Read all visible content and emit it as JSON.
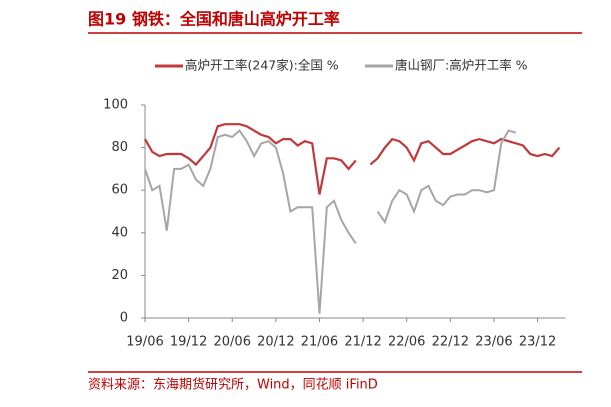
{
  "chart_data": {
    "type": "line",
    "title": "图19   钢铁：全国和唐山高炉开工率",
    "source": "资料来源：东海期货研究所，Wind，同花顺 iFinD",
    "categories": [
      "19/06",
      null,
      null,
      null,
      null,
      null,
      "19/12",
      null,
      null,
      null,
      null,
      null,
      "20/06",
      null,
      null,
      null,
      null,
      null,
      "20/12",
      null,
      null,
      null,
      null,
      null,
      "21/06",
      null,
      null,
      null,
      null,
      null,
      "21/12",
      null,
      null,
      null,
      null,
      null,
      "22/06",
      null,
      null,
      null,
      null,
      null,
      "22/12",
      null,
      null,
      null,
      null,
      null,
      "23/06",
      null,
      null,
      null,
      null,
      null,
      "23/12",
      null,
      null,
      null
    ],
    "series": [
      {
        "name": "高炉开工率(247家):全国 %",
        "color": "#c0393b",
        "values": [
          84,
          78,
          76,
          77,
          77,
          77,
          75,
          72,
          76,
          80,
          90,
          91,
          91,
          91,
          90,
          88,
          86,
          85,
          82,
          84,
          84,
          81,
          83,
          82,
          58,
          75,
          75,
          74,
          70,
          74,
          null,
          72,
          75,
          80,
          84,
          83,
          80,
          74,
          82,
          83,
          80,
          77,
          77,
          79,
          81,
          83,
          84,
          83,
          82,
          84,
          83,
          82,
          81,
          77,
          76,
          77,
          76,
          80
        ]
      },
      {
        "name": "唐山钢厂:高炉开工率 %",
        "color": "#a6a6a6",
        "values": [
          70,
          60,
          62,
          41,
          70,
          70,
          72,
          65,
          62,
          70,
          85,
          86,
          85,
          88,
          83,
          76,
          82,
          83,
          80,
          68,
          50,
          52,
          52,
          52,
          2,
          52,
          55,
          46,
          40,
          35,
          null,
          null,
          50,
          45,
          55,
          60,
          58,
          50,
          60,
          62,
          55,
          53,
          57,
          58,
          58,
          60,
          60,
          59,
          60,
          82,
          88,
          87,
          null,
          null,
          null,
          null,
          null,
          null
        ]
      }
    ],
    "ylim": [
      0,
      100
    ],
    "yticks": [
      0,
      20,
      40,
      60,
      80,
      100
    ]
  }
}
